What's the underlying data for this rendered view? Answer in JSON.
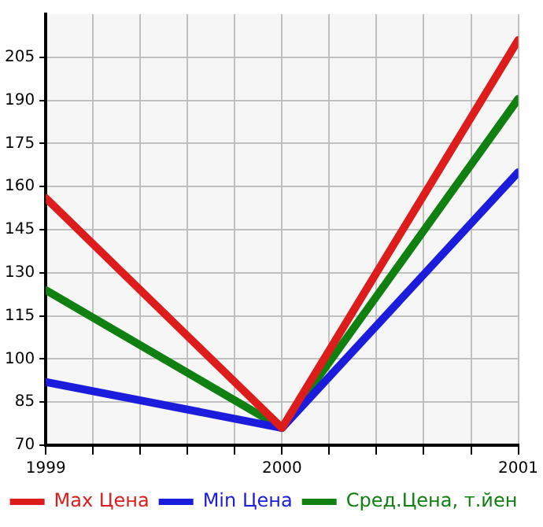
{
  "chart_data": {
    "type": "line",
    "x": [
      1999,
      2000,
      2001
    ],
    "series": [
      {
        "name": "Max Цена",
        "color": "#dd1c1c",
        "values": [
          156,
          76,
          211
        ]
      },
      {
        "name": "Min Цена",
        "color": "#1c1cdd",
        "values": [
          92,
          76,
          165
        ]
      },
      {
        "name": "Сред.Цена, т.йен",
        "color": "#108010",
        "values": [
          124,
          76,
          190.5
        ]
      }
    ],
    "xlim": [
      1999,
      2001
    ],
    "xticks": [
      1999,
      {
        "value": 1999.2,
        "label": null
      },
      {
        "value": 1999.4,
        "label": null
      },
      {
        "value": 1999.6,
        "label": null
      },
      {
        "value": 1999.8,
        "label": null
      },
      2000,
      {
        "value": 2000.2,
        "label": null
      },
      {
        "value": 2000.4,
        "label": null
      },
      {
        "value": 2000.6,
        "label": null
      },
      {
        "value": 2000.8,
        "label": null
      },
      2001
    ],
    "ylim": [
      70,
      220
    ],
    "yticks": [
      70,
      85,
      100,
      115,
      130,
      145,
      160,
      175,
      190,
      205
    ],
    "grid": true,
    "legend": "bottom",
    "marker": "none",
    "line_style": "solid"
  }
}
